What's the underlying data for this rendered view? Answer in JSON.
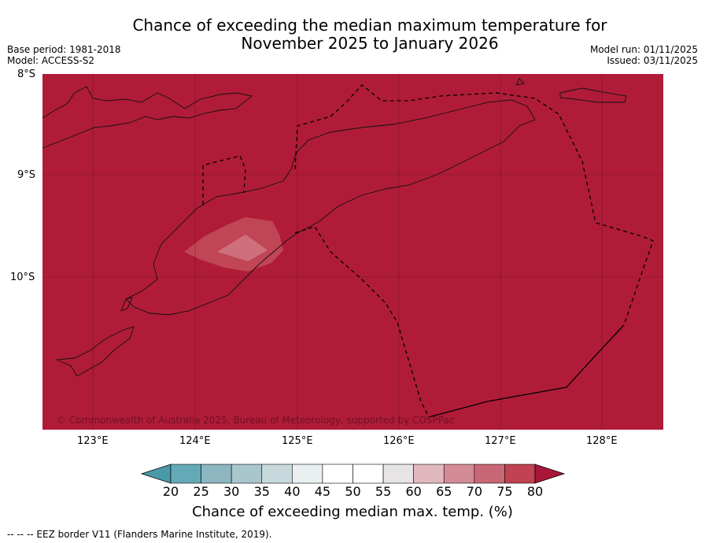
{
  "title": {
    "line1": "Chance of exceeding the median maximum temperature for",
    "line2": "November 2025 to January 2026"
  },
  "meta": {
    "base_period": "Base period: 1981-2018",
    "model": "Model: ACCESS-S2",
    "model_run": "Model run: 01/11/2025",
    "issued": "Issued: 03/11/2025"
  },
  "map": {
    "lat_labels": [
      "8°S",
      "9°S",
      "10°S"
    ],
    "lon_labels": [
      "123°E",
      "124°E",
      "125°E",
      "126°E",
      "127°E",
      "128°E"
    ],
    "copyright": "© Commonwealth of Australia 2025, Bureau of Meteorology, supported by COSPPac",
    "background_color": "#b01c37",
    "anomaly_colors": [
      "#c04655",
      "#cf6f7c"
    ]
  },
  "colorbar": {
    "ticks": [
      "20",
      "25",
      "30",
      "35",
      "40",
      "45",
      "50",
      "55",
      "60",
      "65",
      "70",
      "75",
      "80"
    ],
    "colors": [
      "#64a9b6",
      "#8db6c1",
      "#a8c6cb",
      "#c7d9dd",
      "#eaf0f1",
      "#ffffff",
      "#ffffff",
      "#e6e4e5",
      "#e2b8c0",
      "#d38b96",
      "#c86874",
      "#bf4352"
    ],
    "under_color": "#4a9aa8",
    "over_color": "#a8163a",
    "label": "Chance of exceeding median max. temp. (%)"
  },
  "footnote": "--  --  -- EEZ border V11 (Flanders Marine Institute, 2019)."
}
